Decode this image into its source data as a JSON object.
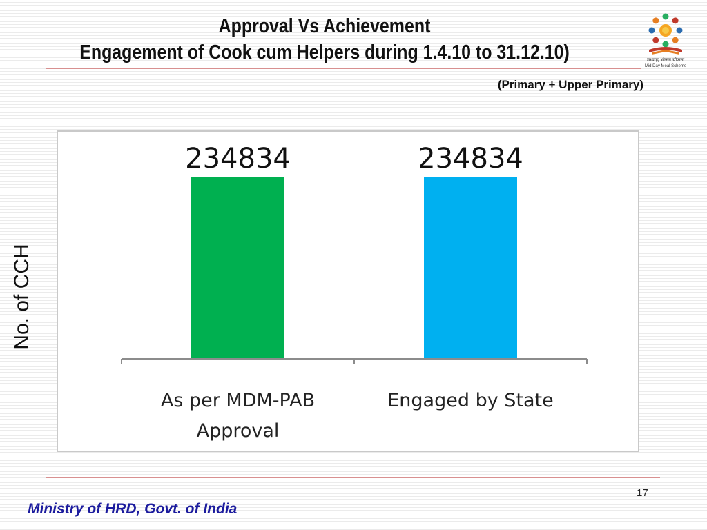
{
  "slide": {
    "title_line1": "Approval Vs Achievement",
    "title_line2": "Engagement of Cook cum Helpers during 1.4.10 to 31.12.10)",
    "subtitle": "(Primary + Upper Primary)",
    "page_number": "17",
    "footer": "Ministry of HRD, Govt. of India",
    "logo": {
      "icon": "mid-day-meal-scheme-logo",
      "caption_hindi": "मध्याह्न भोजन योजना",
      "caption": "Mid Day Meal Scheme"
    }
  },
  "chart_data": {
    "type": "bar",
    "title": "Approval Vs Achievement",
    "ylabel": "No. of CCH",
    "xlabel": "",
    "categories": [
      "As per MDM-PAB Approval",
      "Engaged by State"
    ],
    "category_label_lines": [
      [
        "As per MDM-PAB",
        "Approval"
      ],
      [
        "Engaged by State"
      ]
    ],
    "values": [
      234834,
      234834
    ],
    "data_labels": [
      "234834",
      "234834"
    ],
    "colors": [
      "#00b050",
      "#00b0f0"
    ],
    "ylim": [
      0,
      234834
    ],
    "grid": false,
    "legend": "none"
  }
}
